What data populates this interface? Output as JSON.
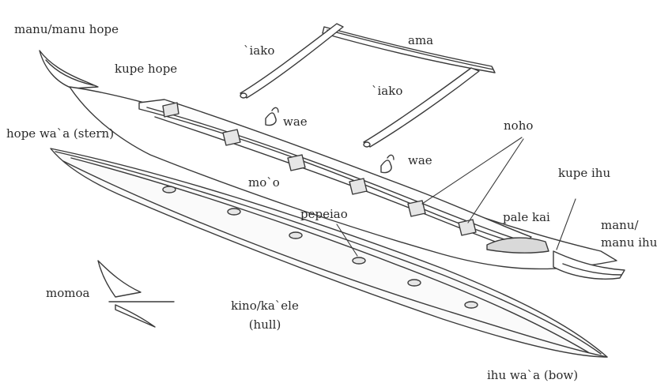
{
  "diagram": {
    "colors": {
      "ink": "#3a3a3a",
      "hull_fill": "#fafafa",
      "shade": "#e6e6e6"
    },
    "labels": {
      "manu_hope": "manu/manu hope",
      "kupe_hope": "kupe hope",
      "iako_left": "`iako",
      "ama": "ama",
      "iako_right": "`iako",
      "wae_left": "wae",
      "wae_right": "wae",
      "hope_waa": "hope wa`a (stern)",
      "noho": "noho",
      "kupe_ihu": "kupe ihu",
      "mo_o": "mo`o",
      "pepeiao": "pepeiao",
      "pale_kai": "pale kai",
      "manu_ihu_line1": "manu/",
      "manu_ihu_line2": "manu ihu",
      "momoa": "momoa",
      "kino_line1": "kino/ka`ele",
      "kino_line2": "(hull)",
      "ihu_waa": "ihu wa`a (bow)"
    }
  }
}
